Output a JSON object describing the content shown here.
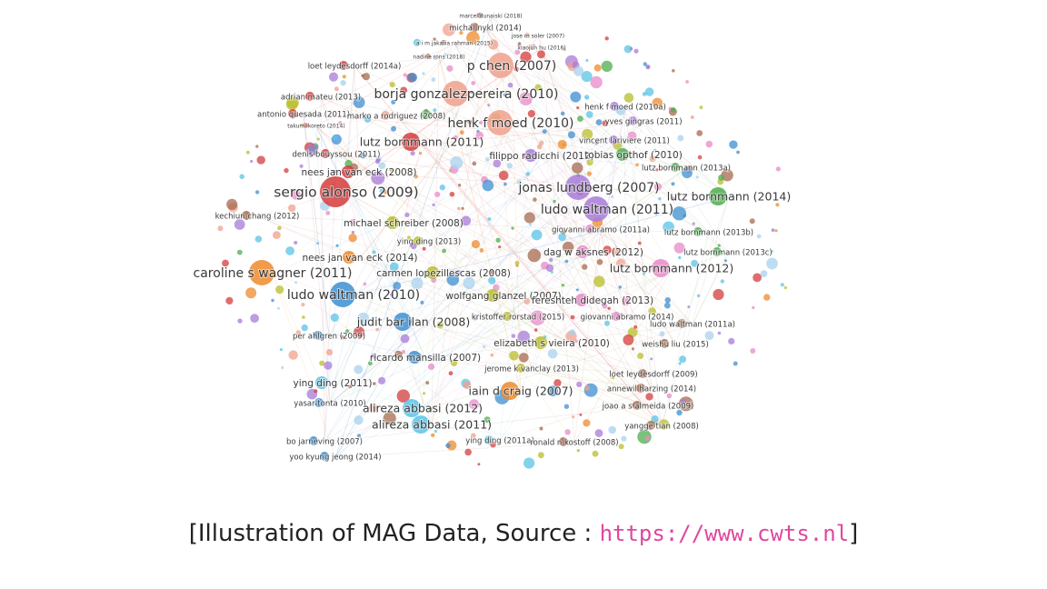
{
  "caption": {
    "prefix": "[Illustration of MAG Data, Source : ",
    "url": "https://www.cwts.nl",
    "suffix": "]"
  },
  "colors": {
    "red": "#d43c3c",
    "salmon": "#f0a08c",
    "purple": "#a77bd8",
    "green": "#4cae4c",
    "orange": "#ef8a2b",
    "blue": "#3d8fd1",
    "cyan": "#5bc3e6",
    "olive": "#b8bd2a",
    "pink": "#e88ac8",
    "brown": "#a56a4f",
    "lightblue": "#a9d2ee"
  },
  "network": {
    "nodes": [
      {
        "label": "marcel dunaiski (2018)",
        "cluster": "brown",
        "size": 1
      },
      {
        "label": "michal nykl (2014)",
        "cluster": "brown",
        "size": 2
      },
      {
        "label": "jose m soler (2007)",
        "cluster": "salmon",
        "size": 1
      },
      {
        "label": "a i m jakaria rahman (2015)",
        "cluster": "brown",
        "size": 1
      },
      {
        "label": "xiaojun hu (2016)",
        "cluster": "salmon",
        "size": 1
      },
      {
        "label": "nadine rons (2018)",
        "cluster": "brown",
        "size": 1
      },
      {
        "label": "p chen (2007)",
        "cluster": "salmon",
        "size": 5
      },
      {
        "label": "loet leydesdorff (2014a)",
        "cluster": "red",
        "size": 2
      },
      {
        "label": "borja gonzalezpereira (2010)",
        "cluster": "salmon",
        "size": 5
      },
      {
        "label": "adrian mateu (2013)",
        "cluster": "red",
        "size": 2
      },
      {
        "label": "antonio quesada (2011)",
        "cluster": "red",
        "size": 2
      },
      {
        "label": "marko a rodriguez (2008)",
        "cluster": "salmon",
        "size": 2
      },
      {
        "label": "takumi koreto (2014)",
        "cluster": "red",
        "size": 1
      },
      {
        "label": "henk f moed (2010)",
        "cluster": "salmon",
        "size": 5
      },
      {
        "label": "henk f moed (2010a)",
        "cluster": "purple",
        "size": 2
      },
      {
        "label": "yves gingras (2011)",
        "cluster": "purple",
        "size": 2
      },
      {
        "label": "lutz bornmann (2011)",
        "cluster": "red",
        "size": 4
      },
      {
        "label": "vincent lariviere (2011)",
        "cluster": "purple",
        "size": 2
      },
      {
        "label": "denis bouyssou (2011)",
        "cluster": "red",
        "size": 2
      },
      {
        "label": "filippo radicchi (2012)",
        "cluster": "purple",
        "size": 3
      },
      {
        "label": "tobias opthof (2010)",
        "cluster": "green",
        "size": 3
      },
      {
        "label": "nees jan van eck (2008)",
        "cluster": "red",
        "size": 3
      },
      {
        "label": "lutz bornmann (2013a)",
        "cluster": "green",
        "size": 2
      },
      {
        "label": "sergio alonso (2009)",
        "cluster": "red",
        "size": 6
      },
      {
        "label": "jonas lundberg (2007)",
        "cluster": "purple",
        "size": 5
      },
      {
        "label": "lutz bornmann (2014)",
        "cluster": "green",
        "size": 4
      },
      {
        "label": "ludo waltman (2011)",
        "cluster": "purple",
        "size": 5
      },
      {
        "label": "kechiun chang (2012)",
        "cluster": "brown",
        "size": 2
      },
      {
        "label": "michael schreiber (2008)",
        "cluster": "olive",
        "size": 3
      },
      {
        "label": "lutz bornmann (2013b)",
        "cluster": "green",
        "size": 2
      },
      {
        "label": "giovanni abramo (2011a)",
        "cluster": "pink",
        "size": 2
      },
      {
        "label": "ying ding (2013)",
        "cluster": "olive",
        "size": 2
      },
      {
        "label": "dag w aksnes (2012)",
        "cluster": "pink",
        "size": 3
      },
      {
        "label": "lutz bornmann (2013c)",
        "cluster": "green",
        "size": 2
      },
      {
        "label": "nees jan van eck (2014)",
        "cluster": "orange",
        "size": 3
      },
      {
        "label": "lutz bornmann (2012)",
        "cluster": "pink",
        "size": 4
      },
      {
        "label": "caroline s wagner (2011)",
        "cluster": "orange",
        "size": 5
      },
      {
        "label": "carmen lopezillescas (2008)",
        "cluster": "olive",
        "size": 3
      },
      {
        "label": "ludo waltman (2010)",
        "cluster": "blue",
        "size": 5
      },
      {
        "label": "wolfgang glanzel (2007)",
        "cluster": "olive",
        "size": 3
      },
      {
        "label": "fereshteh didegah (2013)",
        "cluster": "pink",
        "size": 3
      },
      {
        "label": "judit bar ilan (2008)",
        "cluster": "blue",
        "size": 4
      },
      {
        "label": "kristoffer rorstad (2015)",
        "cluster": "olive",
        "size": 2
      },
      {
        "label": "giovanni abramo (2014)",
        "cluster": "pink",
        "size": 2
      },
      {
        "label": "ludo waltman (2011a)",
        "cluster": "brown",
        "size": 2
      },
      {
        "label": "per ahlgren (2009)",
        "cluster": "blue",
        "size": 2
      },
      {
        "label": "elizabeth s vieira (2010)",
        "cluster": "olive",
        "size": 3
      },
      {
        "label": "weishu liu (2015)",
        "cluster": "brown",
        "size": 2
      },
      {
        "label": "ricardo mansilla (2007)",
        "cluster": "blue",
        "size": 3
      },
      {
        "label": "loet leydesdorff (2009)",
        "cluster": "brown",
        "size": 2
      },
      {
        "label": "jerome k vanclay (2013)",
        "cluster": "olive",
        "size": 2
      },
      {
        "label": "annewil harzing (2014)",
        "cluster": "brown",
        "size": 2
      },
      {
        "label": "ying ding (2011)",
        "cluster": "cyan",
        "size": 3
      },
      {
        "label": "iain d craig (2007)",
        "cluster": "orange",
        "size": 4
      },
      {
        "label": "joao a s almeida (2009)",
        "cluster": "brown",
        "size": 2
      },
      {
        "label": "yasar tonta (2010)",
        "cluster": "blue",
        "size": 2
      },
      {
        "label": "alireza abbasi (2012)",
        "cluster": "cyan",
        "size": 4
      },
      {
        "label": "yangge tian (2008)",
        "cluster": "brown",
        "size": 2
      },
      {
        "label": "alireza abbasi (2011)",
        "cluster": "cyan",
        "size": 4
      },
      {
        "label": "bo jarneving (2007)",
        "cluster": "blue",
        "size": 2
      },
      {
        "label": "ying ding (2011a)",
        "cluster": "cyan",
        "size": 2
      },
      {
        "label": "ronald n kostoff (2008)",
        "cluster": "brown",
        "size": 2
      },
      {
        "label": "yoo kyung jeong (2014)",
        "cluster": "blue",
        "size": 2
      }
    ]
  }
}
